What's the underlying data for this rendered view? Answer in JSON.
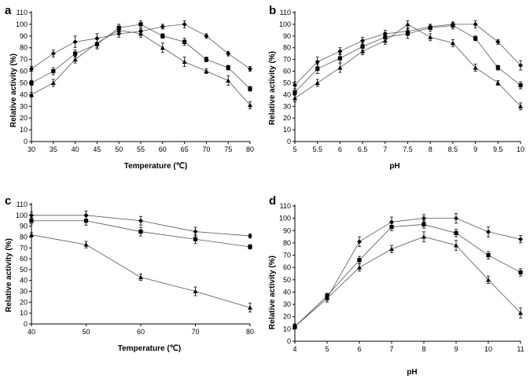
{
  "chart_data": [
    {
      "panel": "a",
      "type": "line",
      "xlabel": "Temperature (℃)",
      "ylabel": "Relative activity (%)",
      "xlim": [
        30,
        80
      ],
      "ylim": [
        0,
        110
      ],
      "x": [
        30,
        35,
        40,
        45,
        50,
        55,
        60,
        65,
        70,
        75,
        80
      ],
      "xticks": [
        "30",
        "35",
        "40",
        "45",
        "50",
        "55",
        "60",
        "65",
        "70",
        "75",
        "80"
      ],
      "yticks": [
        "0",
        "10",
        "20",
        "30",
        "40",
        "50",
        "60",
        "70",
        "80",
        "90",
        "100",
        "110"
      ],
      "series": [
        {
          "name": "diamond",
          "marker": "diamond",
          "values": [
            62,
            75,
            85,
            88,
            92,
            94,
            98,
            100,
            90,
            75,
            62
          ],
          "errors": [
            2,
            3,
            5,
            4,
            3,
            2,
            2,
            3,
            2,
            2,
            2
          ]
        },
        {
          "name": "square",
          "marker": "square",
          "values": [
            50,
            60,
            75,
            83,
            97,
            100,
            90,
            85,
            70,
            63,
            45
          ],
          "errors": [
            2,
            3,
            3,
            4,
            3,
            3,
            2,
            3,
            2,
            2,
            2
          ]
        },
        {
          "name": "triangle",
          "marker": "triangle",
          "values": [
            40,
            50,
            70,
            84,
            95,
            92,
            80,
            68,
            60,
            52,
            31
          ],
          "errors": [
            2,
            3,
            3,
            4,
            3,
            3,
            4,
            4,
            2,
            4,
            3
          ]
        }
      ]
    },
    {
      "panel": "b",
      "type": "line",
      "xlabel": "pH",
      "ylabel": "Relative activity (%)",
      "xlim": [
        5,
        10
      ],
      "ylim": [
        0,
        110
      ],
      "x": [
        5,
        5.5,
        6,
        6.5,
        7,
        7.5,
        8,
        8.5,
        9,
        9.5,
        10
      ],
      "xticks": [
        "5",
        "5.5",
        "6",
        "6.5",
        "7",
        "7.5",
        "8",
        "8.5",
        "9",
        "9.5",
        "10"
      ],
      "yticks": [
        "0",
        "10",
        "20",
        "30",
        "40",
        "50",
        "60",
        "70",
        "80",
        "90",
        "100",
        "110"
      ],
      "series": [
        {
          "name": "diamond",
          "marker": "diamond",
          "values": [
            48,
            68,
            77,
            86,
            92,
            94,
            98,
            100,
            100,
            85,
            65
          ],
          "errors": [
            3,
            4,
            3,
            3,
            3,
            3,
            2,
            2,
            3,
            2,
            4
          ]
        },
        {
          "name": "square",
          "marker": "square",
          "values": [
            42,
            62,
            71,
            81,
            89,
            92,
            97,
            99,
            88,
            63,
            48
          ],
          "errors": [
            3,
            4,
            4,
            3,
            4,
            4,
            3,
            3,
            2,
            2,
            3
          ]
        },
        {
          "name": "triangle",
          "marker": "triangle",
          "values": [
            37,
            50,
            63,
            77,
            86,
            100,
            89,
            84,
            63,
            50,
            30
          ],
          "errors": [
            3,
            3,
            4,
            3,
            3,
            3,
            3,
            3,
            3,
            2,
            3
          ]
        }
      ]
    },
    {
      "panel": "c",
      "type": "line",
      "xlabel": "Temperature (℃)",
      "ylabel": "Relative activity (%)",
      "xlim": [
        40,
        80
      ],
      "ylim": [
        0,
        110
      ],
      "x": [
        40,
        50,
        60,
        70,
        80
      ],
      "xticks": [
        "40",
        "50",
        "60",
        "70",
        "80"
      ],
      "yticks": [
        "0",
        "10",
        "20",
        "30",
        "40",
        "50",
        "60",
        "70",
        "80",
        "90",
        "100",
        "110"
      ],
      "series": [
        {
          "name": "diamond",
          "marker": "diamond",
          "values": [
            100,
            100,
            95,
            85,
            81
          ],
          "errors": [
            3,
            4,
            4,
            4,
            2
          ]
        },
        {
          "name": "square",
          "marker": "square",
          "values": [
            95,
            95,
            85,
            78,
            71
          ],
          "errors": [
            3,
            4,
            4,
            4,
            2
          ]
        },
        {
          "name": "triangle",
          "marker": "triangle",
          "values": [
            82,
            73,
            43,
            30,
            15
          ],
          "errors": [
            2,
            3,
            3,
            4,
            4
          ]
        }
      ]
    },
    {
      "panel": "d",
      "type": "line",
      "xlabel": "pH",
      "ylabel": "Relative activity (%)",
      "xlim": [
        4,
        11
      ],
      "ylim": [
        0,
        110
      ],
      "x": [
        4,
        5,
        6,
        7,
        8,
        9,
        10,
        11
      ],
      "xticks": [
        "4",
        "5",
        "6",
        "7",
        "8",
        "9",
        "10",
        "11"
      ],
      "yticks": [
        "0",
        "10",
        "20",
        "30",
        "40",
        "50",
        "60",
        "70",
        "80",
        "90",
        "100",
        "110"
      ],
      "series": [
        {
          "name": "diamond",
          "marker": "diamond",
          "values": [
            12,
            35,
            81,
            97,
            100,
            100,
            89,
            83
          ],
          "errors": [
            2,
            3,
            4,
            4,
            3,
            4,
            4,
            3
          ]
        },
        {
          "name": "square",
          "marker": "square",
          "values": [
            12,
            37,
            66,
            93,
            95,
            88,
            70,
            56
          ],
          "errors": [
            2,
            2,
            3,
            3,
            3,
            3,
            3,
            3
          ]
        },
        {
          "name": "triangle",
          "marker": "triangle",
          "values": [
            12,
            35,
            60,
            75,
            85,
            78,
            50,
            23
          ],
          "errors": [
            2,
            3,
            3,
            3,
            4,
            4,
            3,
            4
          ]
        }
      ]
    }
  ]
}
